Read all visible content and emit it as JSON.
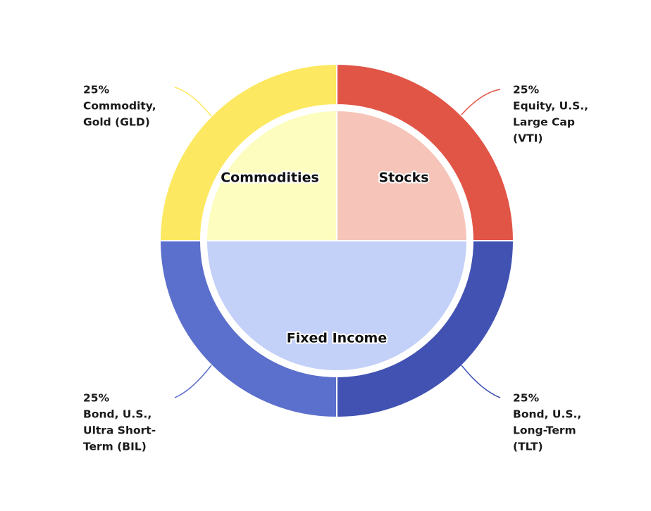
{
  "chart_data": {
    "type": "pie",
    "subtype": "nested-donut",
    "inner_ring": [
      {
        "label": "Stocks",
        "value": 25,
        "color": "#f6c4b8"
      },
      {
        "label": "Fixed Income",
        "value": 50,
        "color": "#c3d0f8"
      },
      {
        "label": "Commodities",
        "value": 25,
        "color": "#fdfdc0"
      }
    ],
    "outer_ring": [
      {
        "pct": "25%",
        "label_lines": [
          "Equity, U.S.,",
          "Large Cap",
          "(VTI)"
        ],
        "value": 25,
        "color": "#e15546"
      },
      {
        "pct": "25%",
        "label_lines": [
          "Bond, U.S.,",
          "Long-Term",
          "(TLT)"
        ],
        "value": 25,
        "color": "#4252b3"
      },
      {
        "pct": "25%",
        "label_lines": [
          "Bond, U.S.,",
          "Ultra Short-",
          "Term (BIL)"
        ],
        "value": 25,
        "color": "#5b6fcc"
      },
      {
        "pct": "25%",
        "label_lines": [
          "Commodity,",
          "Gold (GLD)"
        ],
        "value": 25,
        "color": "#fde961"
      }
    ]
  }
}
